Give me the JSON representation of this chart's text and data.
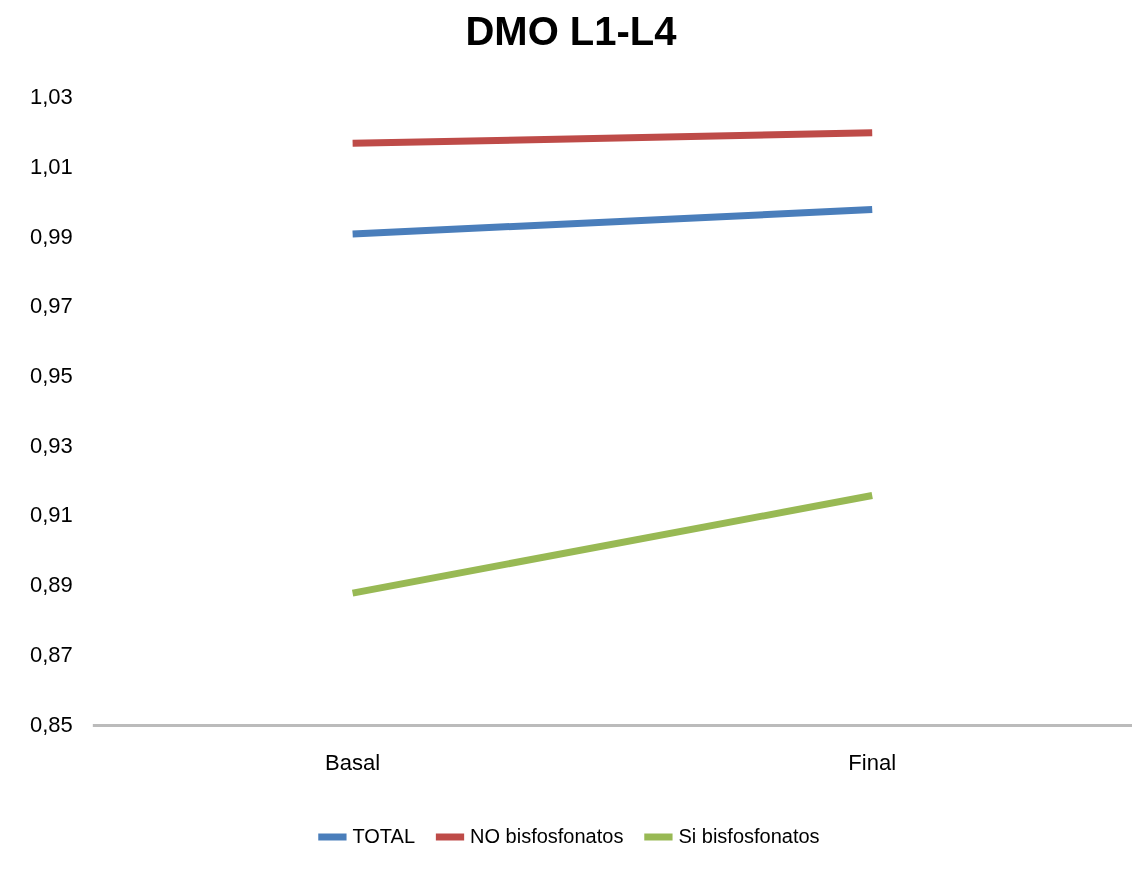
{
  "chart_data": {
    "type": "line",
    "title": "DMO L1-L4",
    "categories": [
      "Basal",
      "Final"
    ],
    "series": [
      {
        "name": "TOTAL",
        "color": "#4a7ebb",
        "values": [
          0.991,
          0.998
        ]
      },
      {
        "name": "NO bisfosfonatos",
        "color": "#be4b48",
        "values": [
          1.017,
          1.02
        ]
      },
      {
        "name": "Si bisfosfonatos",
        "color": "#98b954",
        "values": [
          0.888,
          0.916
        ]
      }
    ],
    "ylim": [
      0.85,
      1.03
    ],
    "yticks": [
      {
        "value": 0.85,
        "label": "0,85"
      },
      {
        "value": 0.87,
        "label": "0,87"
      },
      {
        "value": 0.89,
        "label": "0,89"
      },
      {
        "value": 0.91,
        "label": "0,91"
      },
      {
        "value": 0.93,
        "label": "0,93"
      },
      {
        "value": 0.95,
        "label": "0,95"
      },
      {
        "value": 0.97,
        "label": "0,97"
      },
      {
        "value": 0.99,
        "label": "0,99"
      },
      {
        "value": 1.01,
        "label": "1,01"
      },
      {
        "value": 1.03,
        "label": "1,03"
      }
    ],
    "grid": false,
    "legend": "bottom",
    "marker": "none",
    "line_style": "solid"
  }
}
